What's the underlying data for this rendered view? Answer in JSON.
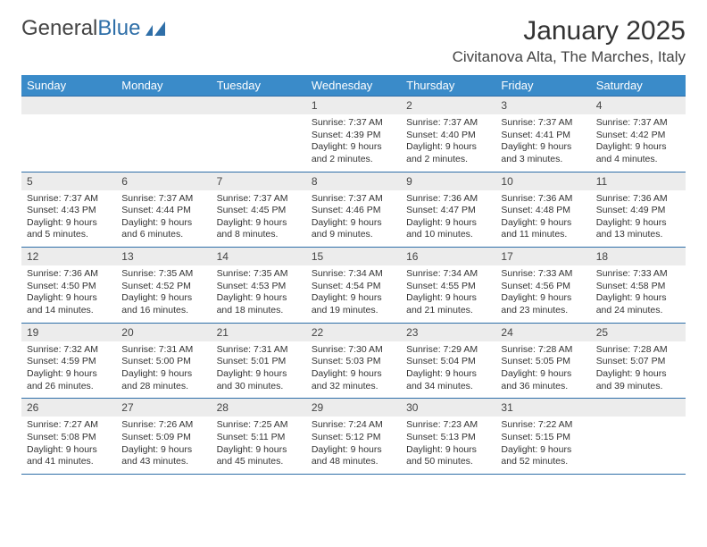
{
  "logo": {
    "text1": "General",
    "text2": "Blue"
  },
  "title": "January 2025",
  "location": "Civitanova Alta, The Marches, Italy",
  "colors": {
    "header_bg": "#3a8bc9",
    "header_text": "#ffffff",
    "daynum_bg": "#ececec",
    "border": "#2f6fa8",
    "body_text": "#333333",
    "logo_blue": "#2f6fa8"
  },
  "typography": {
    "title_fontsize": 30,
    "location_fontsize": 17,
    "dayheader_fontsize": 13,
    "daynum_fontsize": 12,
    "detail_fontsize": 10.5
  },
  "day_headers": [
    "Sunday",
    "Monday",
    "Tuesday",
    "Wednesday",
    "Thursday",
    "Friday",
    "Saturday"
  ],
  "weeks": [
    {
      "nums": [
        "",
        "",
        "",
        "1",
        "2",
        "3",
        "4"
      ],
      "cells": [
        null,
        null,
        null,
        {
          "sunrise": "7:37 AM",
          "sunset": "4:39 PM",
          "daylight": "9 hours and 2 minutes."
        },
        {
          "sunrise": "7:37 AM",
          "sunset": "4:40 PM",
          "daylight": "9 hours and 2 minutes."
        },
        {
          "sunrise": "7:37 AM",
          "sunset": "4:41 PM",
          "daylight": "9 hours and 3 minutes."
        },
        {
          "sunrise": "7:37 AM",
          "sunset": "4:42 PM",
          "daylight": "9 hours and 4 minutes."
        }
      ]
    },
    {
      "nums": [
        "5",
        "6",
        "7",
        "8",
        "9",
        "10",
        "11"
      ],
      "cells": [
        {
          "sunrise": "7:37 AM",
          "sunset": "4:43 PM",
          "daylight": "9 hours and 5 minutes."
        },
        {
          "sunrise": "7:37 AM",
          "sunset": "4:44 PM",
          "daylight": "9 hours and 6 minutes."
        },
        {
          "sunrise": "7:37 AM",
          "sunset": "4:45 PM",
          "daylight": "9 hours and 8 minutes."
        },
        {
          "sunrise": "7:37 AM",
          "sunset": "4:46 PM",
          "daylight": "9 hours and 9 minutes."
        },
        {
          "sunrise": "7:36 AM",
          "sunset": "4:47 PM",
          "daylight": "9 hours and 10 minutes."
        },
        {
          "sunrise": "7:36 AM",
          "sunset": "4:48 PM",
          "daylight": "9 hours and 11 minutes."
        },
        {
          "sunrise": "7:36 AM",
          "sunset": "4:49 PM",
          "daylight": "9 hours and 13 minutes."
        }
      ]
    },
    {
      "nums": [
        "12",
        "13",
        "14",
        "15",
        "16",
        "17",
        "18"
      ],
      "cells": [
        {
          "sunrise": "7:36 AM",
          "sunset": "4:50 PM",
          "daylight": "9 hours and 14 minutes."
        },
        {
          "sunrise": "7:35 AM",
          "sunset": "4:52 PM",
          "daylight": "9 hours and 16 minutes."
        },
        {
          "sunrise": "7:35 AM",
          "sunset": "4:53 PM",
          "daylight": "9 hours and 18 minutes."
        },
        {
          "sunrise": "7:34 AM",
          "sunset": "4:54 PM",
          "daylight": "9 hours and 19 minutes."
        },
        {
          "sunrise": "7:34 AM",
          "sunset": "4:55 PM",
          "daylight": "9 hours and 21 minutes."
        },
        {
          "sunrise": "7:33 AM",
          "sunset": "4:56 PM",
          "daylight": "9 hours and 23 minutes."
        },
        {
          "sunrise": "7:33 AM",
          "sunset": "4:58 PM",
          "daylight": "9 hours and 24 minutes."
        }
      ]
    },
    {
      "nums": [
        "19",
        "20",
        "21",
        "22",
        "23",
        "24",
        "25"
      ],
      "cells": [
        {
          "sunrise": "7:32 AM",
          "sunset": "4:59 PM",
          "daylight": "9 hours and 26 minutes."
        },
        {
          "sunrise": "7:31 AM",
          "sunset": "5:00 PM",
          "daylight": "9 hours and 28 minutes."
        },
        {
          "sunrise": "7:31 AM",
          "sunset": "5:01 PM",
          "daylight": "9 hours and 30 minutes."
        },
        {
          "sunrise": "7:30 AM",
          "sunset": "5:03 PM",
          "daylight": "9 hours and 32 minutes."
        },
        {
          "sunrise": "7:29 AM",
          "sunset": "5:04 PM",
          "daylight": "9 hours and 34 minutes."
        },
        {
          "sunrise": "7:28 AM",
          "sunset": "5:05 PM",
          "daylight": "9 hours and 36 minutes."
        },
        {
          "sunrise": "7:28 AM",
          "sunset": "5:07 PM",
          "daylight": "9 hours and 39 minutes."
        }
      ]
    },
    {
      "nums": [
        "26",
        "27",
        "28",
        "29",
        "30",
        "31",
        ""
      ],
      "cells": [
        {
          "sunrise": "7:27 AM",
          "sunset": "5:08 PM",
          "daylight": "9 hours and 41 minutes."
        },
        {
          "sunrise": "7:26 AM",
          "sunset": "5:09 PM",
          "daylight": "9 hours and 43 minutes."
        },
        {
          "sunrise": "7:25 AM",
          "sunset": "5:11 PM",
          "daylight": "9 hours and 45 minutes."
        },
        {
          "sunrise": "7:24 AM",
          "sunset": "5:12 PM",
          "daylight": "9 hours and 48 minutes."
        },
        {
          "sunrise": "7:23 AM",
          "sunset": "5:13 PM",
          "daylight": "9 hours and 50 minutes."
        },
        {
          "sunrise": "7:22 AM",
          "sunset": "5:15 PM",
          "daylight": "9 hours and 52 minutes."
        },
        null
      ]
    }
  ]
}
